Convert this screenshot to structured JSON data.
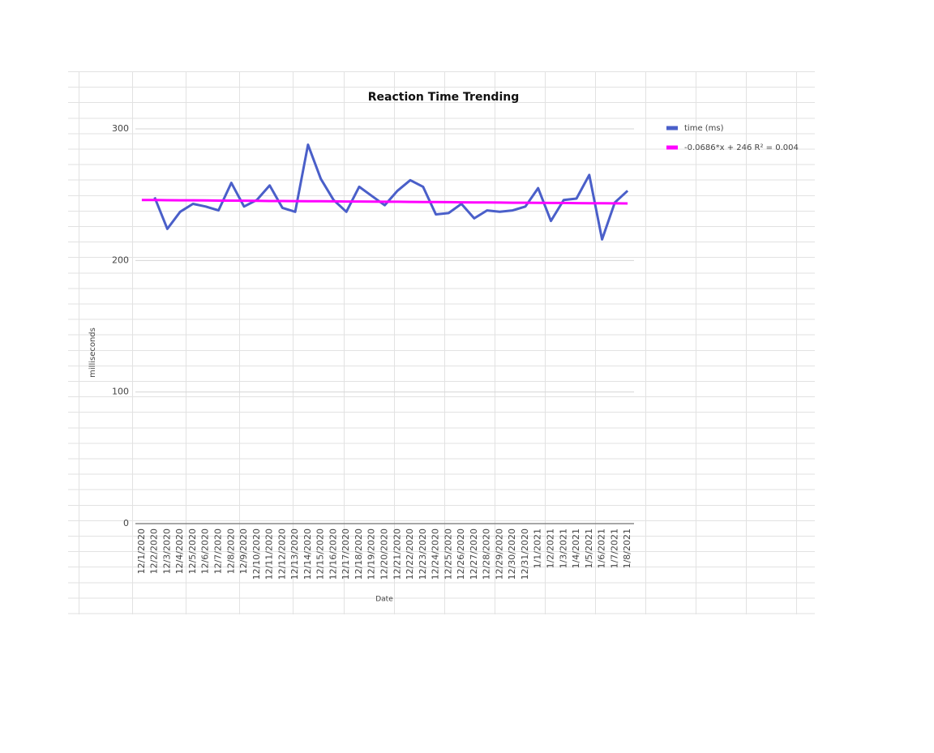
{
  "chart_data": {
    "type": "line",
    "title": "Reaction Time Trending",
    "x_label": "Date",
    "y_label": "milliseconds",
    "categories": [
      "12/1/2020",
      "12/2/2020",
      "12/3/2020",
      "12/4/2020",
      "12/5/2020",
      "12/6/2020",
      "12/7/2020",
      "12/8/2020",
      "12/9/2020",
      "12/10/2020",
      "12/11/2020",
      "12/12/2020",
      "12/13/2020",
      "12/14/2020",
      "12/15/2020",
      "12/16/2020",
      "12/17/2020",
      "12/18/2020",
      "12/19/2020",
      "12/20/2020",
      "12/21/2020",
      "12/22/2020",
      "12/23/2020",
      "12/24/2020",
      "12/25/2020",
      "12/26/2020",
      "12/27/2020",
      "12/28/2020",
      "12/29/2020",
      "12/30/2020",
      "12/31/2020",
      "1/1/2021",
      "1/2/2021",
      "1/3/2021",
      "1/4/2021",
      "1/5/2021",
      "1/6/2021",
      "1/7/2021",
      "1/8/2021"
    ],
    "series": [
      {
        "name": "time (ms)",
        "color": "#4a5fc9",
        "values": [
          null,
          248,
          224,
          237,
          243,
          241,
          238,
          259,
          241,
          246,
          257,
          240,
          237,
          288,
          262,
          246,
          237,
          256,
          249,
          242,
          253,
          261,
          256,
          235,
          236,
          243,
          232,
          238,
          237,
          238,
          241,
          255,
          230,
          246,
          247,
          265,
          216,
          244,
          253
        ]
      },
      {
        "name": "-0.0686*x + 246 R² = 0.004",
        "color": "#ff00ff",
        "values": [
          245.9,
          245.9,
          245.8,
          245.7,
          245.7,
          245.6,
          245.5,
          245.5,
          245.4,
          245.3,
          245.2,
          245.2,
          245.1,
          245.0,
          245.0,
          244.9,
          244.8,
          244.8,
          244.7,
          244.6,
          244.6,
          244.5,
          244.4,
          244.4,
          244.3,
          244.2,
          244.1,
          244.1,
          244.0,
          243.9,
          243.9,
          243.8,
          243.7,
          243.7,
          243.6,
          243.5,
          243.5,
          243.4,
          243.3
        ]
      }
    ],
    "ylim": [
      0,
      300
    ],
    "yticks": [
      0,
      100,
      200,
      300
    ],
    "grid": true,
    "legend": "right"
  }
}
